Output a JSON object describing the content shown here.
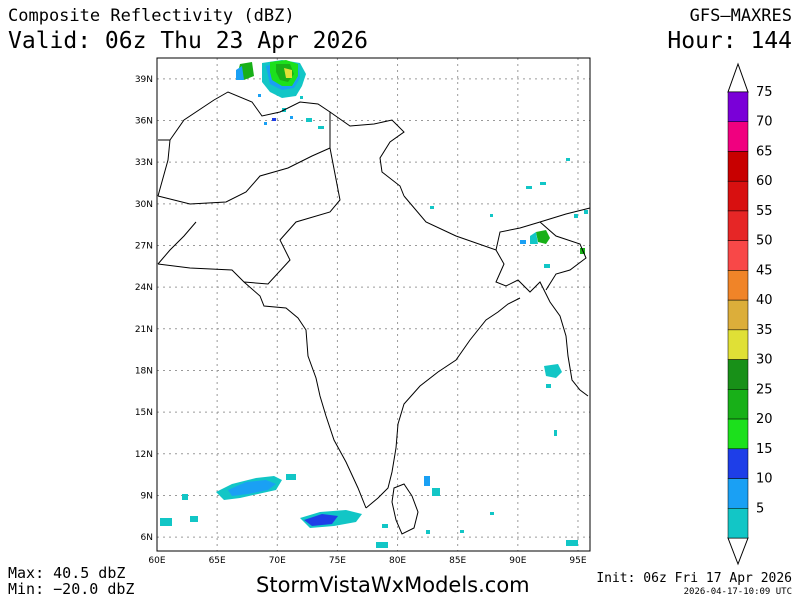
{
  "header": {
    "title": "Composite Reflectivity (dBZ)",
    "valid": "Valid: 06z Thu 23 Apr 2026",
    "model": "GFS—MAXRES",
    "hour": "Hour: 144"
  },
  "footer": {
    "max": "Max: 40.5 dbZ",
    "min": "Min: −20.0 dbZ",
    "site": "StormVistaWxModels.com",
    "init": "Init: 06z Fri 17 Apr 2026",
    "generated": "2026-04-17-10:09 UTC"
  },
  "map": {
    "lat_labels": [
      "39N",
      "36N",
      "33N",
      "30N",
      "27N",
      "24N",
      "21N",
      "18N",
      "15N",
      "12N",
      "9N",
      "6N"
    ],
    "lat_values": [
      39,
      36,
      33,
      30,
      27,
      24,
      21,
      18,
      15,
      12,
      9,
      6
    ],
    "lon_labels": [
      "60E",
      "65E",
      "70E",
      "75E",
      "80E",
      "85E",
      "90E",
      "95E"
    ],
    "lon_values": [
      60,
      65,
      70,
      75,
      80,
      85,
      90,
      95
    ],
    "lon_range": [
      60,
      96
    ],
    "lat_range": [
      5,
      40.5
    ]
  },
  "legend": {
    "levels": [
      "75",
      "70",
      "65",
      "60",
      "55",
      "50",
      "45",
      "40",
      "35",
      "30",
      "25",
      "20",
      "15",
      "10",
      "5"
    ],
    "colors": [
      "#7a00d8",
      "#f0007f",
      "#c80000",
      "#d81010",
      "#e62626",
      "#f84848",
      "#f08428",
      "#dcae3a",
      "#e0e036",
      "#189018",
      "#18b018",
      "#1ce01c",
      "#1e3ee8",
      "#1aa0f4",
      "#12c6c6"
    ]
  }
}
